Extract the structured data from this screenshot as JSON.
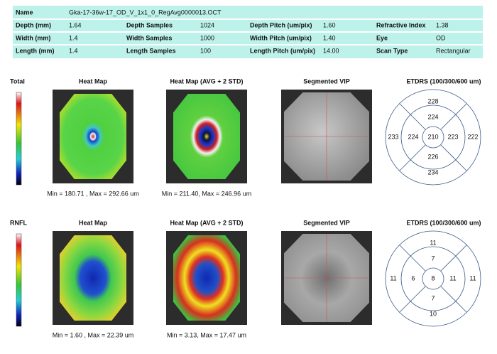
{
  "header": {
    "name_label": "Name",
    "name_value": "Gka-17-36w-17_OD_V_1x1_0_RegAvg0000013.OCT",
    "rows": [
      [
        "Depth (mm)",
        "1.64",
        "Depth Samples",
        "1024",
        "Depth Pitch (um/pix)",
        "1.60",
        "Refractive Index",
        "1.38"
      ],
      [
        "Width (mm)",
        "1.4",
        "Width Samples",
        "1000",
        "Width Pitch (um/pix)",
        "1.40",
        "Eye",
        "OD"
      ],
      [
        "Length (mm)",
        "1.4",
        "Length Samples",
        "100",
        "Length Pitch (um/pix)",
        "14.00",
        "Scan Type",
        "Rectangular"
      ]
    ]
  },
  "panels": [
    {
      "label": "Total",
      "heatmap_title": "Heat Map",
      "heatmap_caption": "Min = 180.71 , Max = 292.66 um",
      "avg_title": "Heat Map (AVG + 2 STD)",
      "avg_caption": "Min = 211.40, Max = 246.96 um",
      "vip_title": "Segmented VIP",
      "etdrs_title": "ETDRS (100/300/600 um)",
      "etdrs": {
        "center": 210,
        "inner": [
          224,
          223,
          226,
          224
        ],
        "outer": [
          228,
          222,
          234,
          233
        ]
      }
    },
    {
      "label": "RNFL",
      "heatmap_title": "Heat Map",
      "heatmap_caption": "Min = 1.60 , Max = 22.39 um",
      "avg_title": "Heat Map (AVG + 2 STD)",
      "avg_caption": "Min = 3.13, Max = 17.47 um",
      "vip_title": "Segmented VIP",
      "etdrs_title": "ETDRS (100/300/600 um)",
      "etdrs": {
        "center": 8,
        "inner": [
          7,
          11,
          7,
          6
        ],
        "outer": [
          11,
          11,
          10,
          11
        ]
      }
    }
  ]
}
